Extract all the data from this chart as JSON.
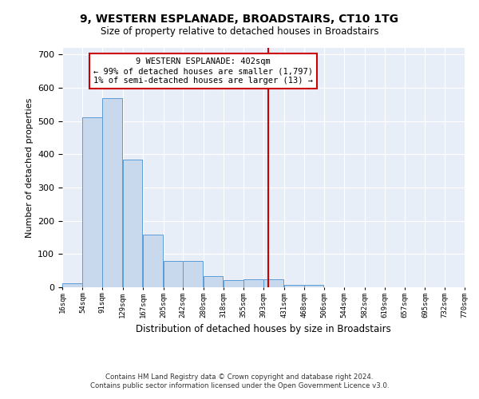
{
  "title": "9, WESTERN ESPLANADE, BROADSTAIRS, CT10 1TG",
  "subtitle": "Size of property relative to detached houses in Broadstairs",
  "xlabel": "Distribution of detached houses by size in Broadstairs",
  "ylabel": "Number of detached properties",
  "footnote1": "Contains HM Land Registry data © Crown copyright and database right 2024.",
  "footnote2": "Contains public sector information licensed under the Open Government Licence v3.0.",
  "bar_left_edges": [
    16,
    54,
    91,
    129,
    167,
    205,
    242,
    280,
    318,
    355,
    393,
    431,
    468,
    506,
    544,
    582,
    619,
    657,
    695,
    732
  ],
  "bar_heights": [
    12,
    512,
    570,
    385,
    158,
    80,
    80,
    34,
    22,
    24,
    24,
    8,
    8,
    0,
    0,
    0,
    0,
    0,
    0,
    0
  ],
  "bin_width": 37,
  "bar_color": "#c9d9ed",
  "bar_edge_color": "#5b9bd5",
  "vline_x": 402,
  "vline_color": "#cc0000",
  "annotation_line1": "9 WESTERN ESPLANADE: 402sqm",
  "annotation_line2": "← 99% of detached houses are smaller (1,797)",
  "annotation_line3": "1% of semi-detached houses are larger (13) →",
  "ylim": [
    0,
    720
  ],
  "yticks": [
    0,
    100,
    200,
    300,
    400,
    500,
    600,
    700
  ],
  "background_color": "#e8eef8",
  "tick_labels": [
    "16sqm",
    "54sqm",
    "91sqm",
    "129sqm",
    "167sqm",
    "205sqm",
    "242sqm",
    "280sqm",
    "318sqm",
    "355sqm",
    "393sqm",
    "431sqm",
    "468sqm",
    "506sqm",
    "544sqm",
    "582sqm",
    "619sqm",
    "657sqm",
    "695sqm",
    "732sqm",
    "770sqm"
  ]
}
